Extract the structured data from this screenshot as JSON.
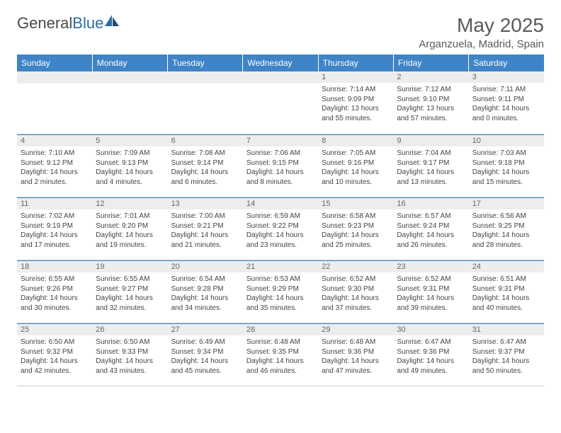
{
  "logo": {
    "part1": "General",
    "part2": "Blue"
  },
  "title": "May 2025",
  "location": "Arganzuela, Madrid, Spain",
  "colors": {
    "header_bg": "#3e84c6",
    "header_text": "#ffffff",
    "daynum_bg": "#ededed",
    "border": "#cfcfcf",
    "text": "#444444"
  },
  "day_headers": [
    "Sunday",
    "Monday",
    "Tuesday",
    "Wednesday",
    "Thursday",
    "Friday",
    "Saturday"
  ],
  "weeks": [
    [
      {
        "n": "",
        "sr": "",
        "ss": "",
        "dl": ""
      },
      {
        "n": "",
        "sr": "",
        "ss": "",
        "dl": ""
      },
      {
        "n": "",
        "sr": "",
        "ss": "",
        "dl": ""
      },
      {
        "n": "",
        "sr": "",
        "ss": "",
        "dl": ""
      },
      {
        "n": "1",
        "sr": "Sunrise: 7:14 AM",
        "ss": "Sunset: 9:09 PM",
        "dl": "Daylight: 13 hours and 55 minutes."
      },
      {
        "n": "2",
        "sr": "Sunrise: 7:12 AM",
        "ss": "Sunset: 9:10 PM",
        "dl": "Daylight: 13 hours and 57 minutes."
      },
      {
        "n": "3",
        "sr": "Sunrise: 7:11 AM",
        "ss": "Sunset: 9:11 PM",
        "dl": "Daylight: 14 hours and 0 minutes."
      }
    ],
    [
      {
        "n": "4",
        "sr": "Sunrise: 7:10 AM",
        "ss": "Sunset: 9:12 PM",
        "dl": "Daylight: 14 hours and 2 minutes."
      },
      {
        "n": "5",
        "sr": "Sunrise: 7:09 AM",
        "ss": "Sunset: 9:13 PM",
        "dl": "Daylight: 14 hours and 4 minutes."
      },
      {
        "n": "6",
        "sr": "Sunrise: 7:08 AM",
        "ss": "Sunset: 9:14 PM",
        "dl": "Daylight: 14 hours and 6 minutes."
      },
      {
        "n": "7",
        "sr": "Sunrise: 7:06 AM",
        "ss": "Sunset: 9:15 PM",
        "dl": "Daylight: 14 hours and 8 minutes."
      },
      {
        "n": "8",
        "sr": "Sunrise: 7:05 AM",
        "ss": "Sunset: 9:16 PM",
        "dl": "Daylight: 14 hours and 10 minutes."
      },
      {
        "n": "9",
        "sr": "Sunrise: 7:04 AM",
        "ss": "Sunset: 9:17 PM",
        "dl": "Daylight: 14 hours and 13 minutes."
      },
      {
        "n": "10",
        "sr": "Sunrise: 7:03 AM",
        "ss": "Sunset: 9:18 PM",
        "dl": "Daylight: 14 hours and 15 minutes."
      }
    ],
    [
      {
        "n": "11",
        "sr": "Sunrise: 7:02 AM",
        "ss": "Sunset: 9:19 PM",
        "dl": "Daylight: 14 hours and 17 minutes."
      },
      {
        "n": "12",
        "sr": "Sunrise: 7:01 AM",
        "ss": "Sunset: 9:20 PM",
        "dl": "Daylight: 14 hours and 19 minutes."
      },
      {
        "n": "13",
        "sr": "Sunrise: 7:00 AM",
        "ss": "Sunset: 9:21 PM",
        "dl": "Daylight: 14 hours and 21 minutes."
      },
      {
        "n": "14",
        "sr": "Sunrise: 6:59 AM",
        "ss": "Sunset: 9:22 PM",
        "dl": "Daylight: 14 hours and 23 minutes."
      },
      {
        "n": "15",
        "sr": "Sunrise: 6:58 AM",
        "ss": "Sunset: 9:23 PM",
        "dl": "Daylight: 14 hours and 25 minutes."
      },
      {
        "n": "16",
        "sr": "Sunrise: 6:57 AM",
        "ss": "Sunset: 9:24 PM",
        "dl": "Daylight: 14 hours and 26 minutes."
      },
      {
        "n": "17",
        "sr": "Sunrise: 6:56 AM",
        "ss": "Sunset: 9:25 PM",
        "dl": "Daylight: 14 hours and 28 minutes."
      }
    ],
    [
      {
        "n": "18",
        "sr": "Sunrise: 6:55 AM",
        "ss": "Sunset: 9:26 PM",
        "dl": "Daylight: 14 hours and 30 minutes."
      },
      {
        "n": "19",
        "sr": "Sunrise: 6:55 AM",
        "ss": "Sunset: 9:27 PM",
        "dl": "Daylight: 14 hours and 32 minutes."
      },
      {
        "n": "20",
        "sr": "Sunrise: 6:54 AM",
        "ss": "Sunset: 9:28 PM",
        "dl": "Daylight: 14 hours and 34 minutes."
      },
      {
        "n": "21",
        "sr": "Sunrise: 6:53 AM",
        "ss": "Sunset: 9:29 PM",
        "dl": "Daylight: 14 hours and 35 minutes."
      },
      {
        "n": "22",
        "sr": "Sunrise: 6:52 AM",
        "ss": "Sunset: 9:30 PM",
        "dl": "Daylight: 14 hours and 37 minutes."
      },
      {
        "n": "23",
        "sr": "Sunrise: 6:52 AM",
        "ss": "Sunset: 9:31 PM",
        "dl": "Daylight: 14 hours and 39 minutes."
      },
      {
        "n": "24",
        "sr": "Sunrise: 6:51 AM",
        "ss": "Sunset: 9:31 PM",
        "dl": "Daylight: 14 hours and 40 minutes."
      }
    ],
    [
      {
        "n": "25",
        "sr": "Sunrise: 6:50 AM",
        "ss": "Sunset: 9:32 PM",
        "dl": "Daylight: 14 hours and 42 minutes."
      },
      {
        "n": "26",
        "sr": "Sunrise: 6:50 AM",
        "ss": "Sunset: 9:33 PM",
        "dl": "Daylight: 14 hours and 43 minutes."
      },
      {
        "n": "27",
        "sr": "Sunrise: 6:49 AM",
        "ss": "Sunset: 9:34 PM",
        "dl": "Daylight: 14 hours and 45 minutes."
      },
      {
        "n": "28",
        "sr": "Sunrise: 6:48 AM",
        "ss": "Sunset: 9:35 PM",
        "dl": "Daylight: 14 hours and 46 minutes."
      },
      {
        "n": "29",
        "sr": "Sunrise: 6:48 AM",
        "ss": "Sunset: 9:36 PM",
        "dl": "Daylight: 14 hours and 47 minutes."
      },
      {
        "n": "30",
        "sr": "Sunrise: 6:47 AM",
        "ss": "Sunset: 9:36 PM",
        "dl": "Daylight: 14 hours and 49 minutes."
      },
      {
        "n": "31",
        "sr": "Sunrise: 6:47 AM",
        "ss": "Sunset: 9:37 PM",
        "dl": "Daylight: 14 hours and 50 minutes."
      }
    ]
  ]
}
